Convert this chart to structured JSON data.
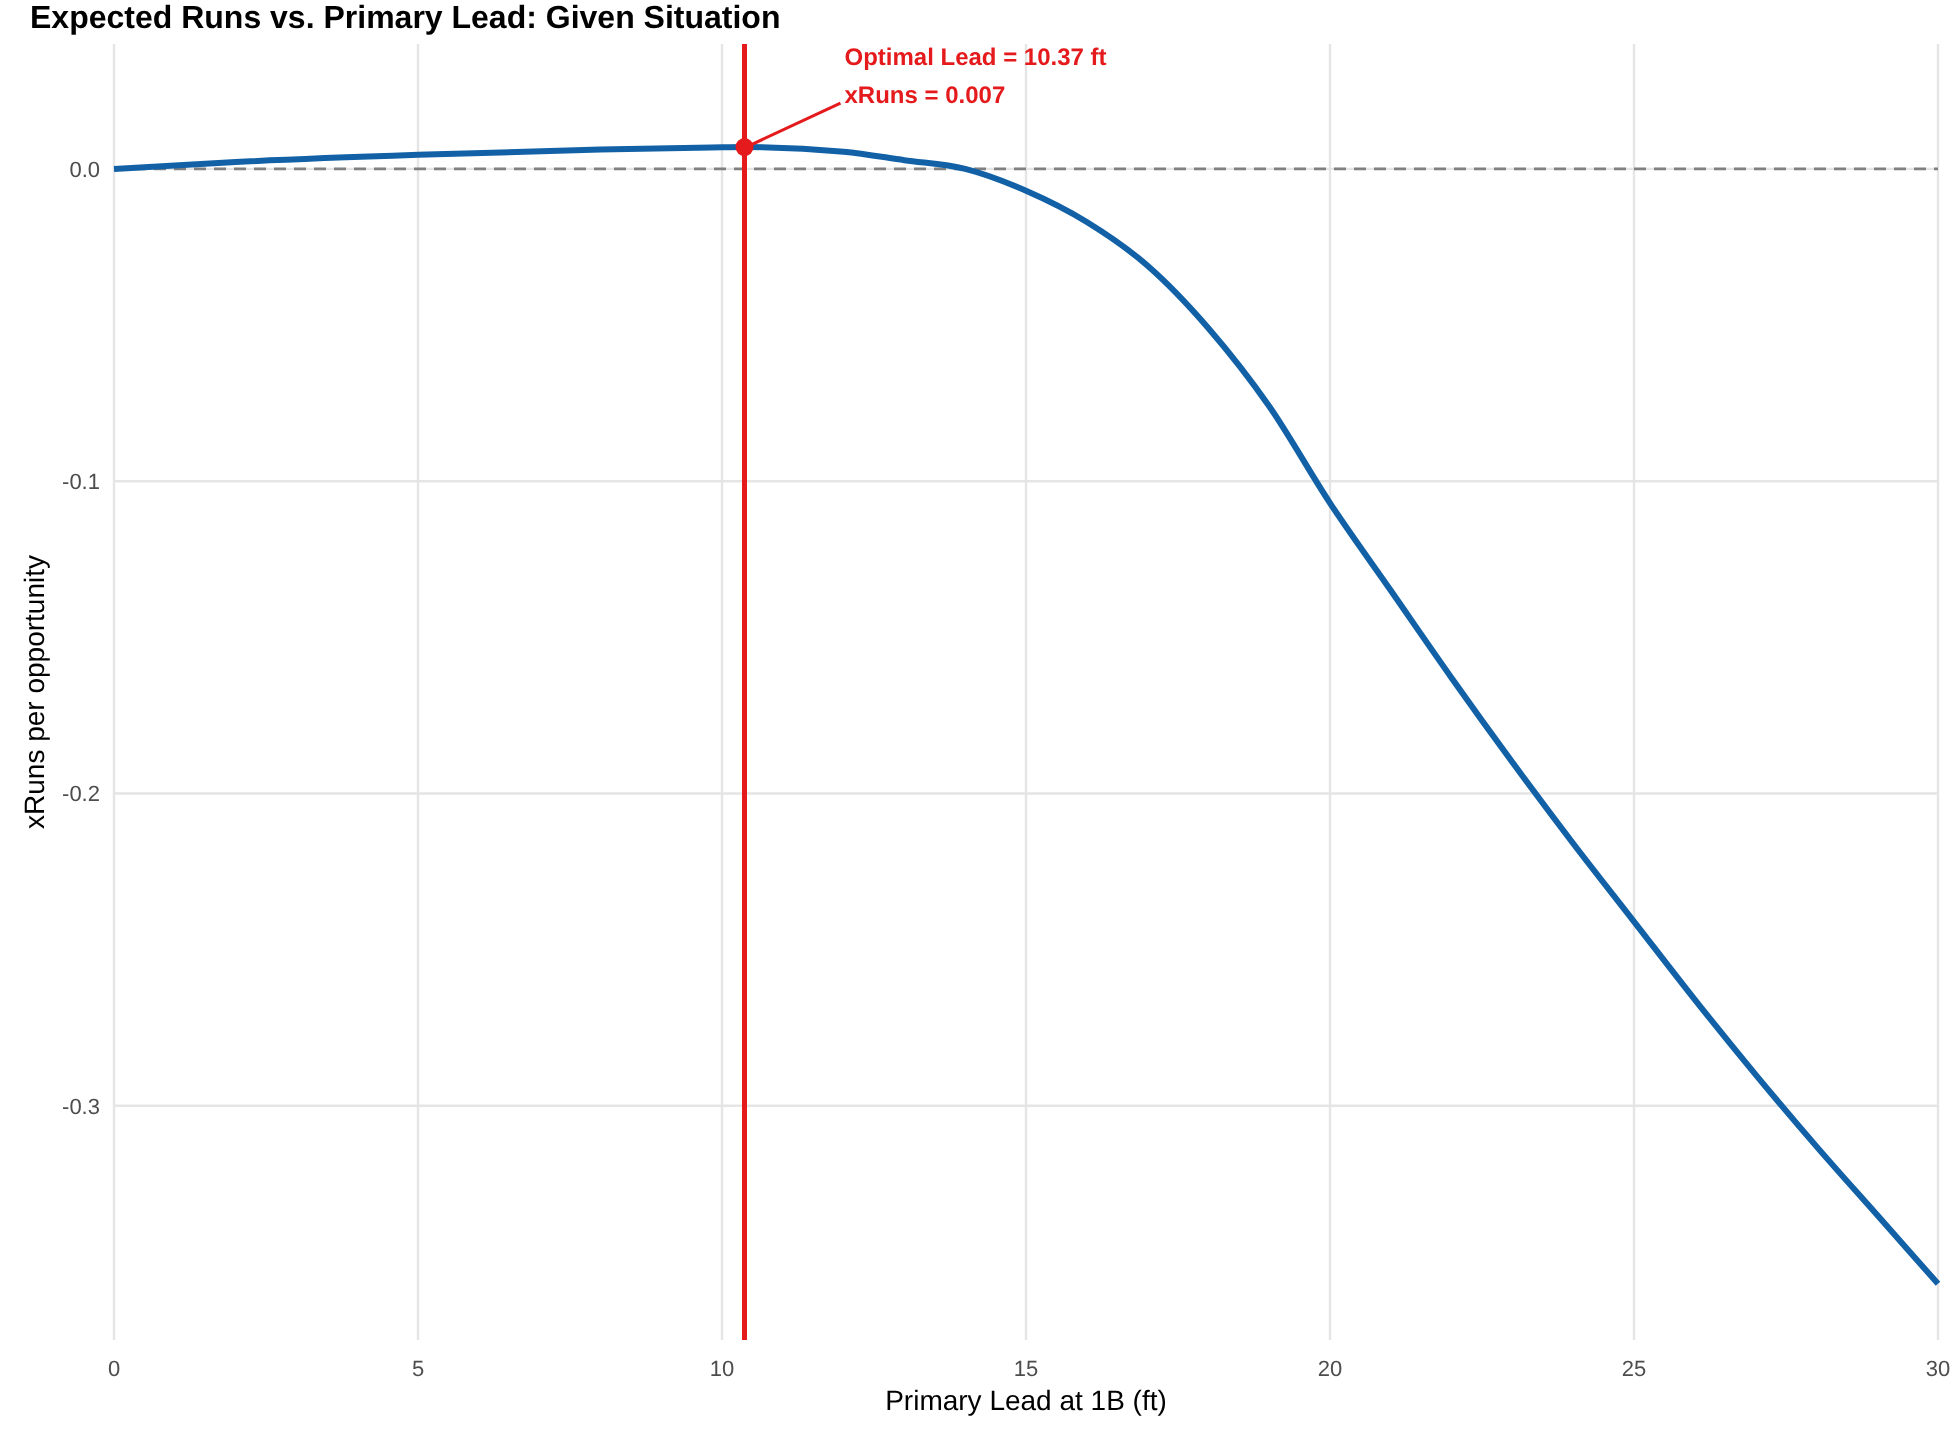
{
  "chart_data": {
    "type": "line",
    "title": "Expected Runs vs. Primary Lead: Given Situation",
    "xlabel": "Primary Lead at 1B (ft)",
    "ylabel": "xRuns per opportunity",
    "x": [
      0,
      2,
      5,
      8,
      10,
      10.37,
      12,
      13,
      14,
      15,
      16,
      17,
      18,
      19,
      20,
      21,
      22,
      23,
      24,
      25,
      26,
      27,
      28,
      29,
      30
    ],
    "series": [
      {
        "color": "#1261a6",
        "values": [
          0,
          0.0022,
          0.0045,
          0.0062,
          0.0069,
          0.007,
          0.0055,
          0.0028,
          0,
          -0.007,
          -0.017,
          -0.031,
          -0.051,
          -0.076,
          -0.107,
          -0.135,
          -0.163,
          -0.19,
          -0.216,
          -0.241,
          -0.266,
          -0.29,
          -0.313,
          -0.335,
          -0.357
        ]
      },
      {
        "type": "scatter",
        "marker": "circle",
        "color": "#e41a1c",
        "x": [
          10.37
        ],
        "values": [
          0.007
        ]
      }
    ],
    "xlim": [
      0,
      30
    ],
    "xticks": [
      0,
      5,
      10,
      15,
      20,
      25,
      30
    ],
    "ylim": [
      -0.375,
      0.04
    ],
    "yticks": [
      {
        "value": 0,
        "label": "0.0"
      },
      {
        "value": -0.1,
        "label": "-0.1"
      },
      {
        "value": -0.2,
        "label": "-0.2"
      },
      {
        "value": -0.3,
        "label": "-0.3"
      }
    ],
    "ref_lines": [
      {
        "axis": "y",
        "value": 0,
        "color": "#808080",
        "line_style": "dashed"
      },
      {
        "axis": "x",
        "value": 10.37,
        "color": "#e41a1c",
        "line_style": "solid"
      }
    ],
    "annotations": [
      "Optimal Lead = 10.37 ft",
      {
        "text": "xRuns = 0.007",
        "x": 10.37,
        "y": 0.007
      }
    ],
    "grid": true,
    "line_style": "solid"
  }
}
